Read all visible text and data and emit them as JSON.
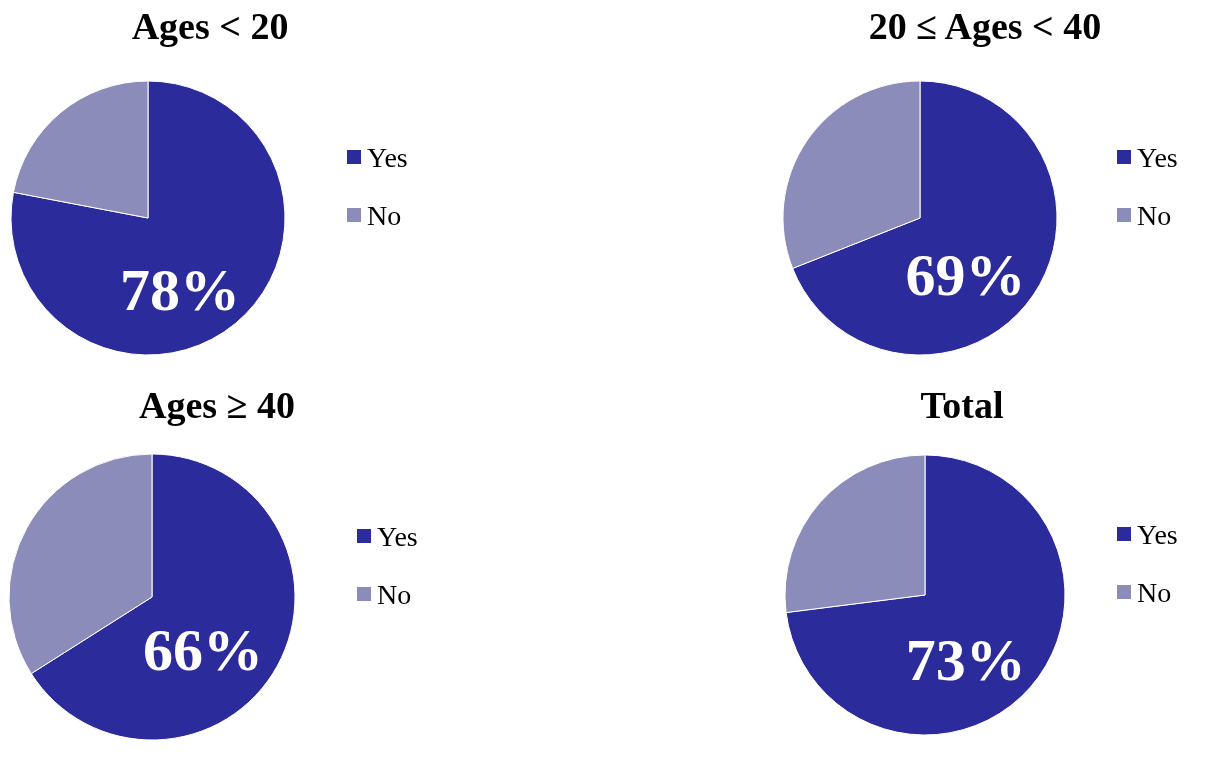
{
  "chart_data": [
    {
      "type": "pie",
      "title": "Ages < 20",
      "categories": [
        "Yes",
        "No"
      ],
      "values": [
        78,
        22
      ],
      "colors": [
        "#2b2b9c",
        "#8c8cba"
      ],
      "value_labels": [
        "78%",
        null
      ],
      "legend": "right"
    },
    {
      "type": "pie",
      "title": "20 ≤ Ages < 40",
      "categories": [
        "Yes",
        "No"
      ],
      "values": [
        69,
        31
      ],
      "colors": [
        "#2b2b9c",
        "#8c8cba"
      ],
      "value_labels": [
        "69%",
        null
      ],
      "legend": "right"
    },
    {
      "type": "pie",
      "title": "Ages ≥ 40",
      "categories": [
        "Yes",
        "No"
      ],
      "values": [
        66,
        34
      ],
      "colors": [
        "#2b2b9c",
        "#8c8cba"
      ],
      "value_labels": [
        "66%",
        null
      ],
      "legend": "right"
    },
    {
      "type": "pie",
      "title": "Total",
      "categories": [
        "Yes",
        "No"
      ],
      "values": [
        73,
        27
      ],
      "colors": [
        "#2b2b9c",
        "#8c8cba"
      ],
      "value_labels": [
        "73%",
        null
      ],
      "legend": "right"
    }
  ]
}
